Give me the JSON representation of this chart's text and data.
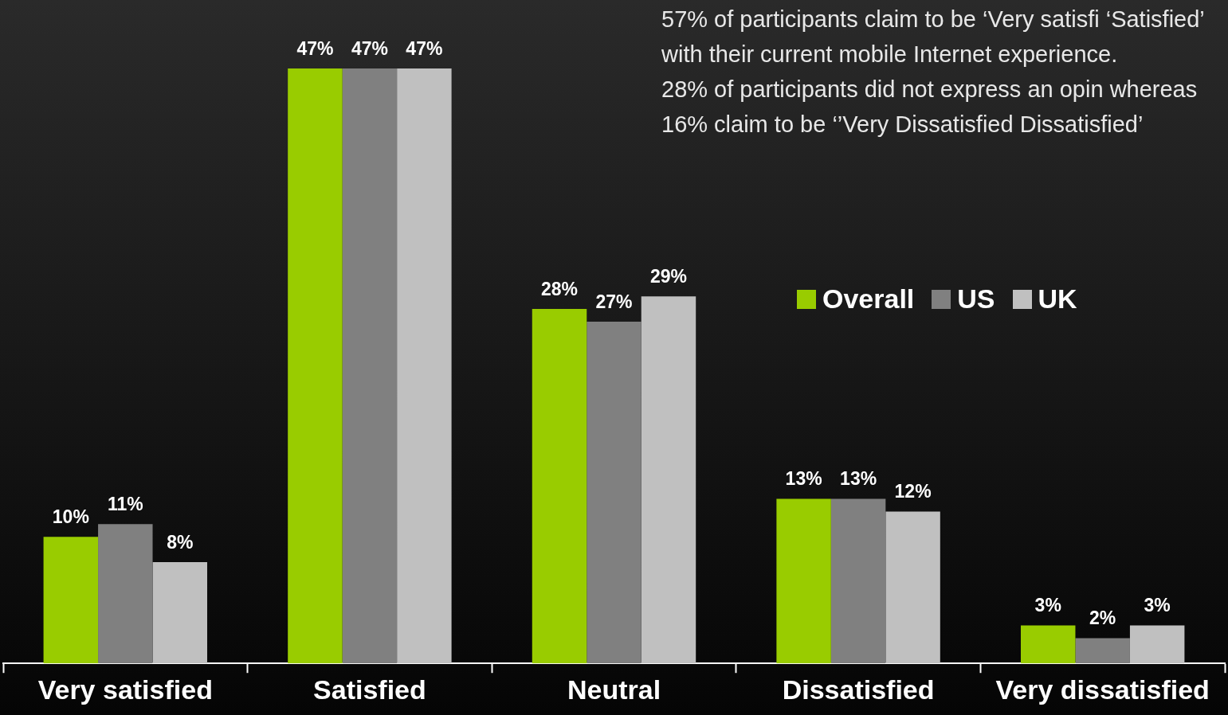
{
  "chart_data": {
    "type": "bar",
    "categories": [
      "Very satisfied",
      "Satisfied",
      "Neutral",
      "Dissatisfied",
      "Very dissatisfied"
    ],
    "series": [
      {
        "name": "Overall",
        "color": "#99cc00",
        "values": [
          10,
          47,
          28,
          13,
          3
        ],
        "value_labels": [
          "10%",
          "47%",
          "28%",
          "13%",
          "3%"
        ]
      },
      {
        "name": "US",
        "color": "#808080",
        "values": [
          11,
          47,
          27,
          13,
          2
        ],
        "value_labels": [
          "11%",
          "47%",
          "27%",
          "13%",
          "2%"
        ]
      },
      {
        "name": "UK",
        "color": "#c0c0c0",
        "values": [
          8,
          47,
          29,
          12,
          3
        ],
        "value_labels": [
          "8%",
          "47%",
          "29%",
          "12%",
          "3%"
        ]
      }
    ],
    "legend": "top right",
    "grid": false,
    "annotations": [
      "57% of participants claim to be ‘Very satisfi ‘Satisfied’ with their current mobile Internet experience.",
      "28% of participants did not express an opin whereas 16% claim to be ‘’Very Dissatisfied Dissatisfied’"
    ]
  }
}
